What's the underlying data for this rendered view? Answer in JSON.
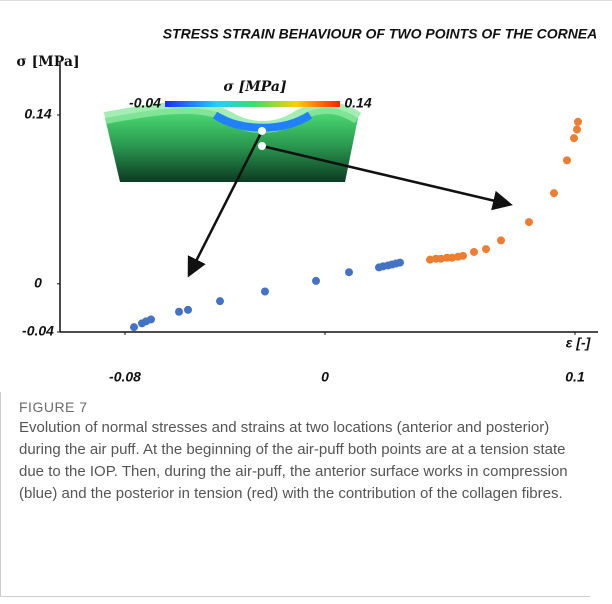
{
  "chart_data": {
    "type": "scatter",
    "title": "STRESS STRAIN BEHAVIOUR OF TWO POINTS OF THE CORNEA",
    "x_label": "ε [-]",
    "y_label": "σ [MPa]",
    "xlim": [
      -0.106,
      0.108
    ],
    "xticks": [
      -0.08,
      0,
      0.1
    ],
    "ylim": [
      -0.04,
      0.184
    ],
    "yticks": [
      -0.04,
      0,
      0.14
    ],
    "series": [
      {
        "color": "#4472c4",
        "x": [
          -0.0764,
          -0.0732,
          -0.0716,
          -0.0696,
          -0.0584,
          -0.0548,
          -0.042,
          -0.024,
          -0.0036,
          0.0096,
          0.0216,
          0.0232,
          0.0252,
          0.0268,
          0.0284,
          0.03
        ],
        "values": [
          -0.036,
          -0.0328,
          -0.0312,
          -0.0296,
          -0.0232,
          -0.0216,
          -0.0144,
          -0.0064,
          0.0024,
          0.0096,
          0.0136,
          0.0144,
          0.0152,
          0.016,
          0.0168,
          0.0176
        ]
      },
      {
        "color": "#ed7d31",
        "x": [
          0.042,
          0.0444,
          0.0464,
          0.0488,
          0.0508,
          0.0532,
          0.0552,
          0.0596,
          0.0644,
          0.0704,
          0.0816,
          0.0916,
          0.0968,
          0.0996,
          0.1008,
          0.1012
        ],
        "values": [
          0.02,
          0.0208,
          0.0208,
          0.0216,
          0.0216,
          0.0224,
          0.0232,
          0.0264,
          0.0288,
          0.036,
          0.0512,
          0.0752,
          0.1024,
          0.1208,
          0.128,
          0.1344
        ]
      }
    ],
    "inset": {
      "title": "σ [MPa]",
      "colorbar_lim": [
        -0.04,
        0.14
      ]
    }
  },
  "caption": {
    "label": "FIGURE 7",
    "text": "Evolution of normal stresses and strains at two locations (anterior and posterior) during the air puff. At the beginning of the air-puff both points are at a tension state due to the IOP. Then, during the air-puff, the anterior surface works in compression (blue) and the posterior in tension (red) with the contribution of the collagen fibres."
  }
}
